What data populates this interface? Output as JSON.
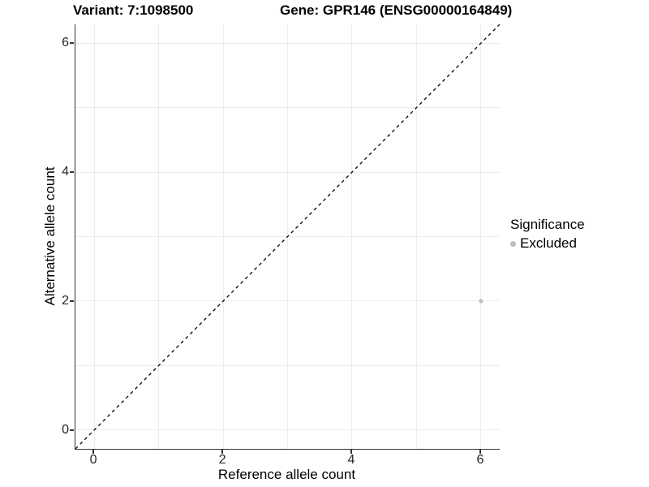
{
  "chart_data": {
    "type": "scatter",
    "titles": {
      "left": "Variant: 7:1098500",
      "right": "Gene: GPR146 (ENSG00000164849)"
    },
    "xlabel": "Reference allele count",
    "ylabel": "Alternative allele count",
    "xlim": [
      -0.29,
      6.29
    ],
    "ylim": [
      -0.29,
      6.29
    ],
    "major_ticks": [
      0,
      2,
      4,
      6
    ],
    "minor_ticks": [
      1,
      3,
      5
    ],
    "tick_labels": [
      "0",
      "2",
      "4",
      "6"
    ],
    "grid": true,
    "series": [
      {
        "name": "Excluded",
        "color": "#bdbdbd",
        "points": [
          {
            "x": 6,
            "y": 2
          }
        ]
      }
    ],
    "reference_line": {
      "slope": 1,
      "intercept": 0,
      "style": "dashed",
      "color": "#000000"
    },
    "legend": {
      "title": "Significance",
      "position": "right",
      "entries": [
        {
          "label": "Excluded",
          "color": "#bdbdbd"
        }
      ]
    },
    "colors": {
      "grid": "#ececec",
      "axis": "#333333",
      "tick_text": "#262626",
      "background": "#ffffff"
    }
  }
}
